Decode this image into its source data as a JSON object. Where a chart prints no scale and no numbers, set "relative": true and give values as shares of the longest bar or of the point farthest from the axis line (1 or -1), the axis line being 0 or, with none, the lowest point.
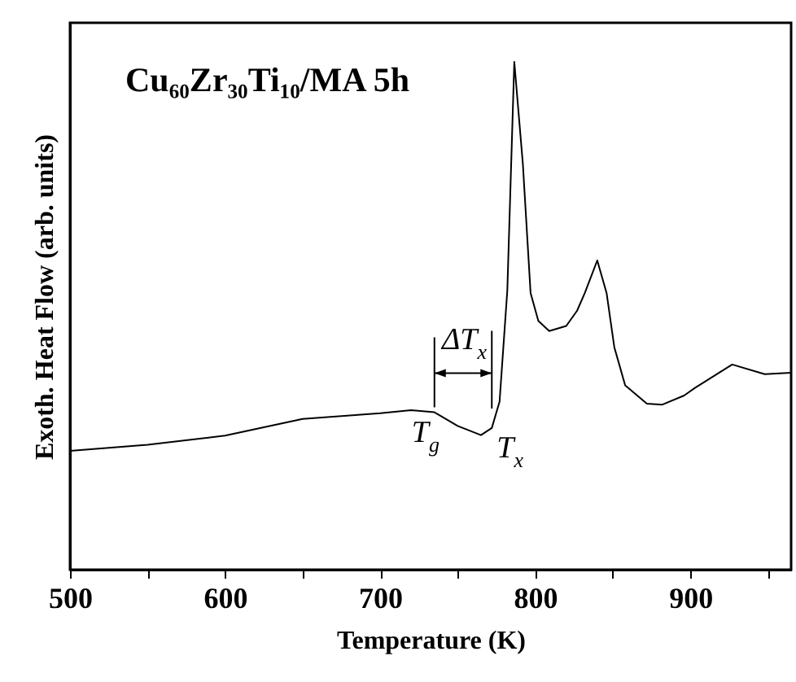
{
  "chart_data": {
    "type": "line",
    "title": "Cu₆₀Zr₃₀Ti₁₀/MA 5h",
    "xlabel": "Temperature (K)",
    "ylabel": "Exoth. Heat Flow (arb. units)",
    "relative": true,
    "color": "#000000",
    "x": [
      500,
      550,
      600,
      650,
      700,
      720,
      735,
      750,
      765,
      772,
      777,
      782,
      786.5,
      792,
      797,
      802,
      809,
      820,
      827,
      832,
      840,
      846,
      851,
      858,
      872,
      882,
      896,
      903,
      927,
      948,
      965
    ],
    "values": [
      0.234,
      0.246,
      0.264,
      0.297,
      0.308,
      0.314,
      0.31,
      0.283,
      0.265,
      0.279,
      0.331,
      0.55,
      1,
      0.8,
      0.545,
      0.49,
      0.47,
      0.48,
      0.51,
      0.545,
      0.609,
      0.545,
      0.438,
      0.363,
      0.327,
      0.325,
      0.343,
      0.358,
      0.404,
      0.385,
      0.388
    ],
    "xlim": [
      500,
      965
    ],
    "xticks": [
      500,
      {
        "value": 550,
        "label": null
      },
      600,
      {
        "value": 650,
        "label": null
      },
      700,
      {
        "value": 750,
        "label": null
      },
      800,
      {
        "value": 850,
        "label": null
      },
      900,
      {
        "value": 950,
        "label": null
      }
    ],
    "annotations": [
      {
        "text": "T$_{g}$",
        "x": 735,
        "y": 0.31
      },
      {
        "text": "T$_{x}$",
        "x": 772,
        "y": 0.279
      },
      "ΔT$_{x}$"
    ],
    "grid": false
  }
}
